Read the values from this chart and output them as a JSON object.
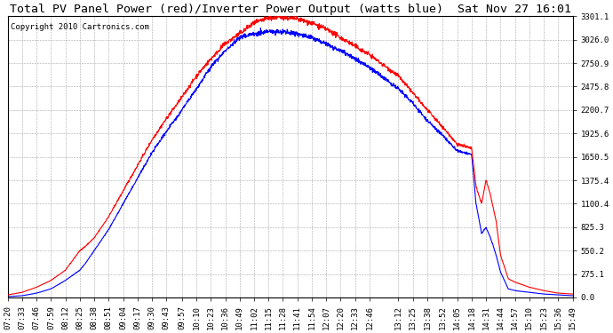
{
  "title": "Total PV Panel Power (red)/Inverter Power Output (watts blue)  Sat Nov 27 16:01",
  "copyright": "Copyright 2010 Cartronics.com",
  "y_ticks": [
    0.0,
    275.1,
    550.2,
    825.3,
    1100.4,
    1375.4,
    1650.5,
    1925.6,
    2200.7,
    2475.8,
    2750.9,
    3026.0,
    3301.1
  ],
  "x_labels": [
    "07:20",
    "07:33",
    "07:46",
    "07:59",
    "08:12",
    "08:25",
    "08:38",
    "08:51",
    "09:04",
    "09:17",
    "09:30",
    "09:43",
    "09:57",
    "10:10",
    "10:23",
    "10:36",
    "10:49",
    "11:02",
    "11:15",
    "11:28",
    "11:41",
    "11:54",
    "12:07",
    "12:20",
    "12:33",
    "12:46",
    "13:12",
    "13:25",
    "13:38",
    "13:52",
    "14:05",
    "14:18",
    "14:31",
    "14:44",
    "14:57",
    "15:10",
    "15:23",
    "15:36",
    "15:49"
  ],
  "bg_color": "#ffffff",
  "grid_color": "#aaaaaa",
  "red_color": "#ff0000",
  "blue_color": "#0000ff",
  "title_fontsize": 9.5,
  "copyright_fontsize": 6.5,
  "tick_fontsize": 6.5,
  "y_min": 0.0,
  "y_max": 3301.1
}
